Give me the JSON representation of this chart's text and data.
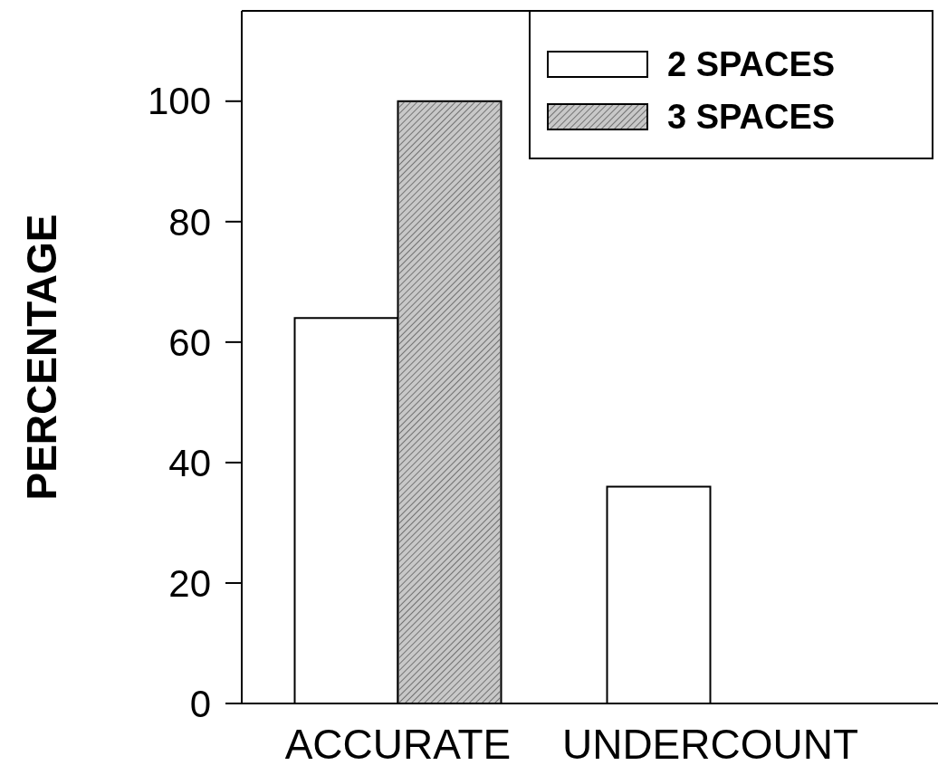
{
  "chart_data": {
    "type": "bar",
    "ylabel": "PERCENTAGE",
    "categories": [
      "ACCURATE",
      "UNDERCOUNT"
    ],
    "series": [
      {
        "name": "2 SPACES",
        "color": "#ffffff",
        "values": [
          64,
          36
        ]
      },
      {
        "name": "3 SPACES",
        "color": "#c8c8c8",
        "values": [
          100,
          0
        ]
      }
    ],
    "ylim": [
      0,
      115
    ],
    "yticks": [
      0,
      20,
      40,
      60,
      80,
      100
    ],
    "grid": false,
    "legend": "top right"
  }
}
